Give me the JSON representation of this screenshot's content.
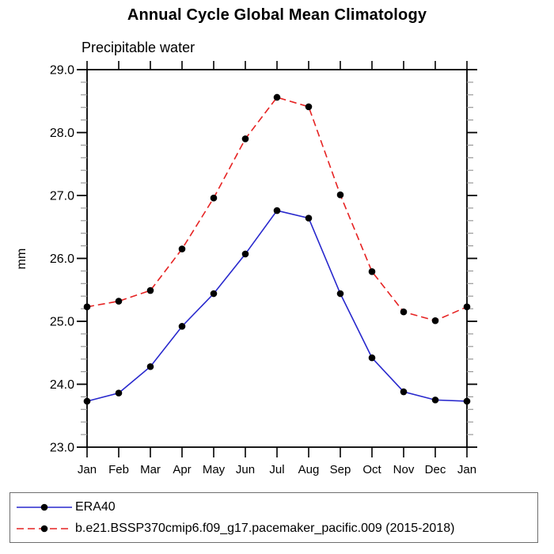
{
  "header": {
    "title": "Annual Cycle Global Mean Climatology",
    "subtitle": "Precipitable water"
  },
  "chart_data": {
    "type": "line",
    "title": "Annual Cycle Global Mean Climatology",
    "subtitle": "Precipitable water",
    "xlabel": "",
    "ylabel": "mm",
    "x_categories": [
      "Jan",
      "Feb",
      "Mar",
      "Apr",
      "May",
      "Jun",
      "Jul",
      "Aug",
      "Sep",
      "Oct",
      "Nov",
      "Dec",
      "Jan"
    ],
    "ylim": [
      23.0,
      29.0
    ],
    "ytick_major_step": 1.0,
    "ytick_minor_step": 0.2,
    "ytick_labels": [
      "23.0",
      "24.0",
      "25.0",
      "26.0",
      "27.0",
      "28.0",
      "29.0"
    ],
    "grid": false,
    "legend_position": "bottom",
    "colors": {
      "axis": "#000000",
      "minor_tick": "#999999",
      "marker": "#000000",
      "era40_line": "#2828cd",
      "model_line": "#e62222"
    },
    "series": [
      {
        "name": "ERA40",
        "color": "#2828cd",
        "line_style": "solid",
        "marker": "circle",
        "marker_color": "#000000",
        "values": [
          23.73,
          23.86,
          24.28,
          24.92,
          25.44,
          26.07,
          26.76,
          26.64,
          25.44,
          24.42,
          23.88,
          23.75,
          23.73
        ]
      },
      {
        "name": "b.e21.BSSP370cmip6.f09_g17.pacemaker_pacific.009 (2015-2018)",
        "color": "#e62222",
        "line_style": "dashed",
        "marker": "circle",
        "marker_color": "#000000",
        "values": [
          25.23,
          25.32,
          25.49,
          26.15,
          26.96,
          27.9,
          28.56,
          28.41,
          27.01,
          25.79,
          25.15,
          25.01,
          25.23
        ]
      }
    ]
  }
}
